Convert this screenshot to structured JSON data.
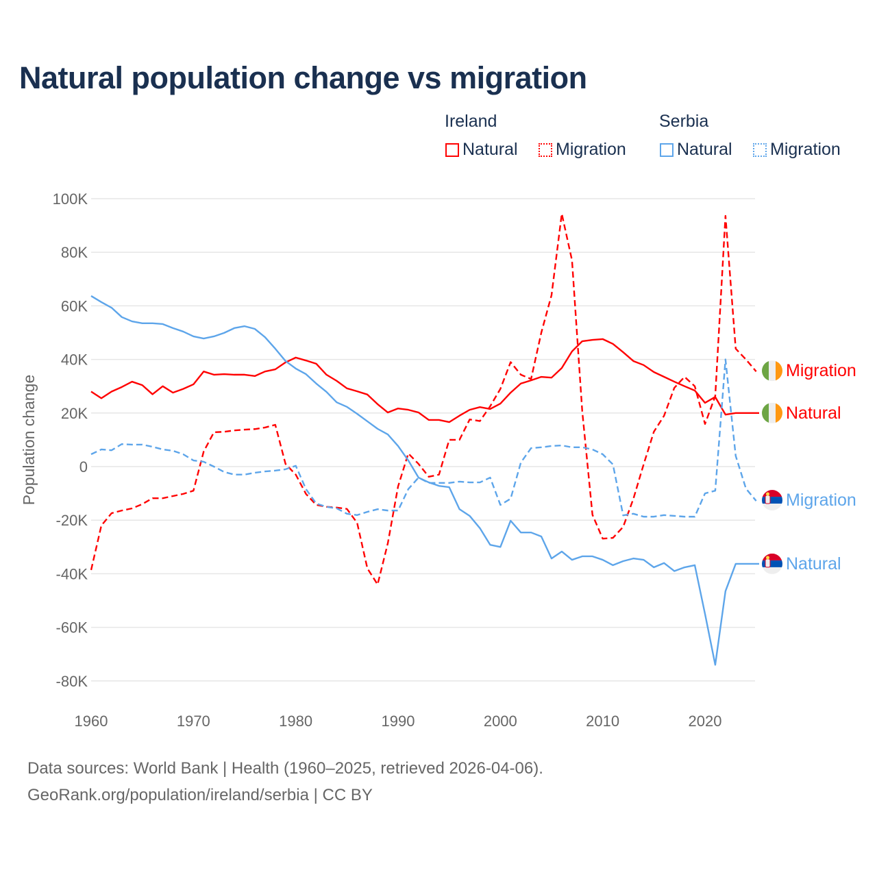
{
  "chart_data": {
    "type": "line",
    "title": "Natural population change vs migration",
    "xlabel": "",
    "ylabel": "Population change",
    "xlim": [
      1960,
      2025
    ],
    "ylim": [
      -80000,
      100000
    ],
    "x_ticks": [
      1960,
      1970,
      1980,
      1990,
      2000,
      2010,
      2020
    ],
    "x_tick_labels": [
      "1960",
      "1970",
      "1980",
      "1990",
      "2000",
      "2010",
      "2020"
    ],
    "y_ticks": [
      100000,
      80000,
      60000,
      40000,
      20000,
      0,
      -20000,
      -40000,
      -60000,
      -80000
    ],
    "y_tick_labels": [
      "100K",
      "80K",
      "60K",
      "40K",
      "20K",
      "0",
      "-20K",
      "-40K",
      "-60K",
      "-80K"
    ],
    "grid": true,
    "legend_groups": [
      {
        "name": "Ireland",
        "items": [
          "Natural",
          "Migration"
        ]
      },
      {
        "name": "Serbia",
        "items": [
          "Natural",
          "Migration"
        ]
      }
    ],
    "legend_placement": "top-right",
    "series": [
      {
        "country": "Ireland",
        "name": "Natural",
        "color": "#ff0000",
        "dashed": false,
        "label_value": 20000,
        "start_year": 1960,
        "values": [
          28000,
          25500,
          28000,
          29700,
          31700,
          30400,
          27000,
          30000,
          27600,
          29000,
          30700,
          35500,
          34300,
          34500,
          34300,
          34300,
          33800,
          35500,
          36300,
          38900,
          40700,
          39600,
          38400,
          34300,
          32000,
          29200,
          28100,
          26900,
          23300,
          20200,
          21700,
          21200,
          20200,
          17400,
          17400,
          16600,
          19000,
          21200,
          22200,
          21500,
          23500,
          27600,
          31000,
          32200,
          33500,
          33200,
          36800,
          43000,
          46800,
          47300,
          47600,
          45800,
          42700,
          39400,
          37900,
          35300,
          33500,
          31700,
          30000,
          28400,
          23800,
          26000,
          19400,
          20000
        ]
      },
      {
        "country": "Ireland",
        "name": "Migration",
        "color": "#ff0000",
        "dashed": true,
        "label_value": 35500,
        "start_year": 1960,
        "values": [
          -38600,
          -22000,
          -17400,
          -16400,
          -15600,
          -14000,
          -11800,
          -11800,
          -11000,
          -10200,
          -9000,
          5600,
          12800,
          13000,
          13500,
          13800,
          14000,
          14600,
          15600,
          1000,
          -3000,
          -10200,
          -14300,
          -15000,
          -15300,
          -15800,
          -21000,
          -38000,
          -44000,
          -28600,
          -7400,
          4900,
          1000,
          -3800,
          -3000,
          10000,
          10000,
          17600,
          17000,
          22500,
          29000,
          39000,
          34300,
          32700,
          50000,
          64000,
          94400,
          77000,
          20700,
          -18000,
          -26900,
          -26600,
          -22500,
          -12000,
          800,
          13000,
          19000,
          29400,
          33500,
          30000,
          15900,
          26300,
          93600,
          44000,
          40000,
          35500
        ]
      },
      {
        "country": "Serbia",
        "name": "Natural",
        "color": "#5da5ea",
        "dashed": false,
        "label_value": -36300,
        "start_year": 1960,
        "values": [
          63700,
          61400,
          59300,
          55800,
          54200,
          53500,
          53500,
          53200,
          51700,
          50400,
          48600,
          47800,
          48600,
          49900,
          51700,
          52400,
          51400,
          48300,
          44000,
          39400,
          36600,
          34500,
          31000,
          27900,
          24000,
          22300,
          19700,
          16900,
          14100,
          12000,
          7700,
          2300,
          -4100,
          -5900,
          -7200,
          -7700,
          -15900,
          -18400,
          -23000,
          -29200,
          -30000,
          -20200,
          -24600,
          -24600,
          -26100,
          -34300,
          -31700,
          -34800,
          -33500,
          -33500,
          -34800,
          -36800,
          -35300,
          -34300,
          -34800,
          -37600,
          -36000,
          -39000,
          -37600,
          -36800,
          -55000,
          -74000,
          -46500,
          -36300
        ]
      },
      {
        "country": "Serbia",
        "name": "Migration",
        "color": "#5da5ea",
        "dashed": true,
        "label_value": -12800,
        "start_year": 1960,
        "values": [
          4600,
          6400,
          6100,
          8400,
          8200,
          8200,
          7400,
          6400,
          5900,
          4600,
          2300,
          1800,
          0,
          -2000,
          -3000,
          -3000,
          -2300,
          -1800,
          -1500,
          -1000,
          300,
          -8400,
          -13800,
          -15000,
          -15600,
          -17600,
          -18100,
          -16900,
          -15900,
          -16400,
          -16400,
          -8400,
          -4100,
          -6100,
          -6100,
          -6100,
          -5600,
          -5900,
          -5900,
          -4100,
          -14300,
          -12000,
          1500,
          6900,
          7200,
          7700,
          7900,
          7200,
          7200,
          6400,
          4600,
          800,
          -18200,
          -17600,
          -18700,
          -18700,
          -18100,
          -18400,
          -18700,
          -18700,
          -10000,
          -9000,
          40000,
          4000,
          -8200,
          -12800
        ]
      }
    ]
  },
  "legend": {
    "ireland": "Ireland",
    "serbia": "Serbia",
    "natural": "Natural",
    "migration": "Migration"
  },
  "footer": {
    "line1": "Data sources: World Bank | Health (1960–2025, retrieved 2026-04-06).",
    "line2": "GeoRank.org/population/ireland/serbia | CC BY"
  }
}
